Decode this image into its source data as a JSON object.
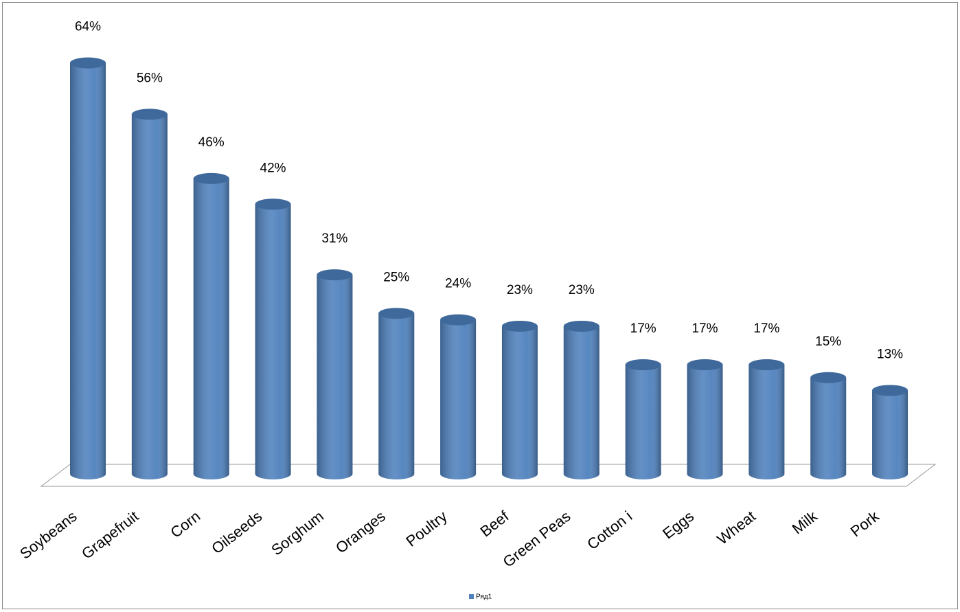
{
  "chart_data": {
    "type": "bar",
    "categories": [
      "Soybeans",
      "Grapefruit",
      "Corn",
      "Oilseeds",
      "Sorghum",
      "Oranges",
      "Poultry",
      "Beef",
      "Green Peas",
      "Cotton i",
      "Eggs",
      "Wheat",
      "Milk",
      "Pork"
    ],
    "series": [
      {
        "name": "Ряд1",
        "color": "#4f81bd",
        "values": [
          64,
          56,
          46,
          42,
          31,
          25,
          24,
          23,
          23,
          17,
          17,
          17,
          15,
          13
        ],
        "value_labels": [
          "64%",
          "56%",
          "46%",
          "42%",
          "31%",
          "25%",
          "24%",
          "23%",
          "23%",
          "17%",
          "17%",
          "17%",
          "15%",
          "13%"
        ]
      }
    ]
  }
}
